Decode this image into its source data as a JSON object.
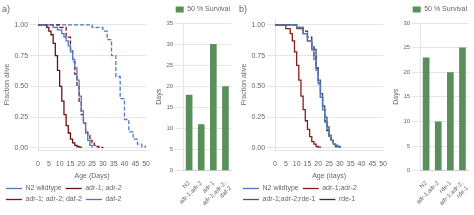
{
  "chart_data": [
    {
      "type": "step",
      "title": "a)",
      "x_label": "Age (Days)",
      "y_label": "Fraction alive",
      "xlim": [
        0,
        50
      ],
      "ylim": [
        -0.02,
        1.05
      ],
      "xticks": [
        0,
        5,
        10,
        15,
        20,
        25,
        30,
        35,
        40,
        45,
        50
      ],
      "yticks": [
        {
          "value": 0.0,
          "label": "0.00"
        },
        {
          "value": 0.25,
          "label": "0.25"
        },
        {
          "value": 0.5,
          "label": "0.50"
        },
        {
          "value": 0.75,
          "label": "0.75"
        },
        {
          "value": 1.0,
          "label": "1.00"
        }
      ],
      "grid": "y",
      "legend": "bottom left",
      "series": [
        {
          "name": "N2 wildtype",
          "color": "#4f7abf",
          "line_style": "solid",
          "x": [
            0,
            5,
            7,
            9,
            11,
            12,
            13,
            14,
            15,
            16,
            17,
            18,
            19,
            20,
            21,
            22,
            23,
            24,
            25
          ],
          "values": [
            1.0,
            1.0,
            0.98,
            0.96,
            0.93,
            0.9,
            0.87,
            0.83,
            0.78,
            0.72,
            0.65,
            0.55,
            0.42,
            0.3,
            0.2,
            0.12,
            0.06,
            0.02,
            0.0
          ]
        },
        {
          "name": "adr-1; adr-2",
          "color": "#6b1010",
          "line_style": "solid",
          "x": [
            0,
            4,
            5,
            6,
            7,
            8,
            9,
            10,
            11,
            12,
            13,
            14,
            15,
            16,
            17,
            18,
            19,
            20
          ],
          "values": [
            1.0,
            0.98,
            0.95,
            0.92,
            0.85,
            0.75,
            0.63,
            0.5,
            0.38,
            0.27,
            0.18,
            0.12,
            0.07,
            0.04,
            0.02,
            0.01,
            0.005,
            0.0
          ]
        },
        {
          "name": "adr-1; adr-2; daf-2",
          "color": "#7b1515",
          "line_style": "dashed",
          "x": [
            0,
            5,
            10,
            13,
            15,
            16,
            17,
            18,
            19,
            20,
            21,
            22,
            23,
            24,
            25,
            26,
            27,
            28,
            29,
            30
          ],
          "values": [
            1.0,
            1.0,
            0.98,
            0.9,
            0.8,
            0.7,
            0.6,
            0.5,
            0.38,
            0.27,
            0.2,
            0.14,
            0.1,
            0.06,
            0.04,
            0.02,
            0.01,
            0.005,
            0.002,
            0.0
          ]
        },
        {
          "name": "daf-2",
          "color": "#4f7abf",
          "line_style": "dashed",
          "x": [
            0,
            5,
            10,
            15,
            20,
            25,
            30,
            32,
            34,
            36,
            38,
            40,
            42,
            44,
            46,
            48,
            50
          ],
          "values": [
            1.0,
            1.0,
            1.0,
            1.0,
            1.0,
            0.98,
            0.95,
            0.88,
            0.75,
            0.58,
            0.4,
            0.23,
            0.13,
            0.07,
            0.03,
            0.01,
            0.0
          ]
        }
      ]
    },
    {
      "type": "bar",
      "y_label": "Days",
      "categories": [
        "N2",
        "adr-1;adr-2",
        "adr-1",
        "adr-1;adr-2;\ndaf-2"
      ],
      "ylim": [
        0,
        35
      ],
      "yticks": [
        0,
        5,
        10,
        15,
        20,
        25,
        30,
        35
      ],
      "grid": "y",
      "legend": "upper right",
      "series": [
        {
          "name": "50 % Survival",
          "color": "#5a8f5a",
          "values": [
            18,
            11,
            30,
            20
          ]
        }
      ]
    },
    {
      "type": "step",
      "title": "b)",
      "x_label": "Age (days)",
      "y_label": "Fraction alive",
      "xlim": [
        0,
        50
      ],
      "ylim": [
        -0.02,
        1.05
      ],
      "xticks": [
        0,
        5,
        10,
        15,
        20,
        25,
        30,
        35,
        40,
        45,
        50
      ],
      "yticks": [
        {
          "value": 0.0,
          "label": "0.00"
        },
        {
          "value": 0.25,
          "label": "0.25"
        },
        {
          "value": 0.5,
          "label": "0.50"
        },
        {
          "value": 0.75,
          "label": "0.75"
        },
        {
          "value": 1.0,
          "label": "1.00"
        }
      ],
      "grid": "y",
      "legend": "bottom left",
      "series": [
        {
          "name": "N2 wildtype",
          "color": "#4f7abf",
          "line_style": "solid",
          "x": [
            0,
            5,
            10,
            13,
            15,
            17,
            18,
            19,
            20,
            21,
            22,
            23,
            24,
            25,
            26,
            27,
            28,
            29,
            30
          ],
          "values": [
            1.0,
            1.0,
            0.98,
            0.93,
            0.87,
            0.8,
            0.72,
            0.63,
            0.52,
            0.41,
            0.31,
            0.22,
            0.15,
            0.1,
            0.06,
            0.03,
            0.02,
            0.01,
            0.0
          ]
        },
        {
          "name": "adr-1;adr-2",
          "color": "#8b1a1a",
          "line_style": "solid",
          "x": [
            0,
            5,
            7,
            8,
            9,
            10,
            11,
            12,
            13,
            14,
            15,
            16,
            17,
            18,
            19,
            20,
            21
          ],
          "values": [
            1.0,
            0.97,
            0.93,
            0.87,
            0.78,
            0.67,
            0.55,
            0.42,
            0.31,
            0.22,
            0.15,
            0.09,
            0.05,
            0.03,
            0.01,
            0.005,
            0.0
          ]
        },
        {
          "name": "adr-1;adr-2;rde-1",
          "color": "#555555",
          "line_style": "solid",
          "x": [
            0,
            5,
            10,
            13,
            15,
            17,
            19,
            20,
            21,
            22,
            23,
            24,
            25,
            26,
            27,
            28,
            29,
            30
          ],
          "values": [
            1.0,
            1.0,
            0.97,
            0.93,
            0.87,
            0.8,
            0.65,
            0.55,
            0.44,
            0.34,
            0.25,
            0.17,
            0.1,
            0.06,
            0.03,
            0.02,
            0.01,
            0.0
          ]
        },
        {
          "name": "rde-1",
          "color": "#333333",
          "line_style": "dashed",
          "x": [
            0,
            5,
            10,
            13,
            15,
            17,
            18,
            19,
            20,
            21,
            22,
            23,
            24,
            25,
            26,
            27,
            28,
            29,
            30
          ],
          "values": [
            1.0,
            1.0,
            0.98,
            0.95,
            0.9,
            0.83,
            0.75,
            0.65,
            0.53,
            0.41,
            0.31,
            0.21,
            0.14,
            0.08,
            0.05,
            0.02,
            0.01,
            0.005,
            0.0
          ]
        }
      ]
    },
    {
      "type": "bar",
      "y_label": "Days",
      "categories": [
        "N2",
        "adr-1;adr-2",
        "rde-1",
        "adr-1;adr-2;\nrde-1"
      ],
      "ylim": [
        0,
        30
      ],
      "yticks": [
        0,
        5,
        10,
        15,
        20,
        25,
        30
      ],
      "grid": "y",
      "legend": "upper right",
      "series": [
        {
          "name": "50 % Survival",
          "color": "#5a8f5a",
          "values": [
            23,
            10,
            20,
            25
          ]
        }
      ]
    }
  ]
}
